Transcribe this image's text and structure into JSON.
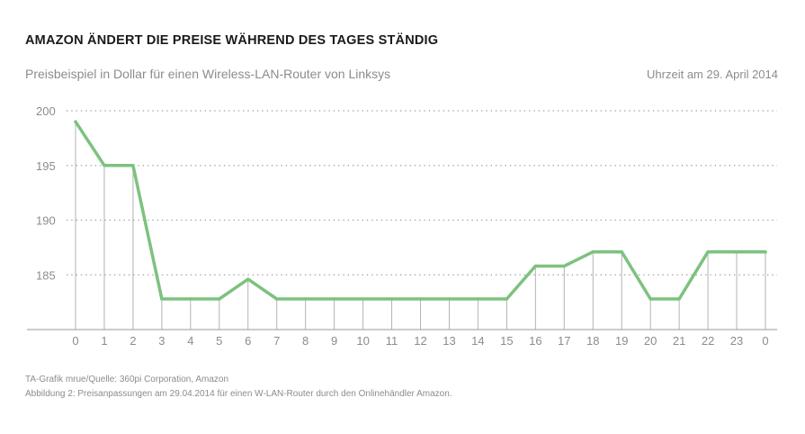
{
  "header": {
    "title": "AMAZON ÄNDERT DIE PREISE WÄHREND DES TAGES STÄNDIG",
    "subtitle": "Preisbeispiel in Dollar für einen Wireless-LAN-Router von Linksys",
    "time_note": "Uhrzeit am 29. April 2014"
  },
  "footer": {
    "source": "TA-Grafik mrue/Quelle: 360pi Corporation, Amazon",
    "caption": "Abbildung 2: Preisanpassungen am 29.04.2014 für einen W-LAN-Router durch den Onlinehändler Amazon."
  },
  "colors": {
    "line": "#7cc27f",
    "drop_line": "#b3b3b3",
    "grid": "#9a9a9a",
    "axis_text": "#8c8c8c"
  },
  "chart_data": {
    "type": "line",
    "title": "AMAZON ÄNDERT DIE PREISE WÄHREND DES TAGES STÄNDIG",
    "subtitle": "Preisbeispiel in Dollar für einen Wireless-LAN-Router von Linksys",
    "xlabel": "Uhrzeit am 29. April 2014",
    "ylabel": "",
    "categories": [
      "0",
      "1",
      "2",
      "3",
      "4",
      "5",
      "6",
      "7",
      "8",
      "9",
      "10",
      "11",
      "12",
      "13",
      "14",
      "15",
      "16",
      "17",
      "18",
      "19",
      "20",
      "21",
      "22",
      "23",
      "0"
    ],
    "values": [
      199,
      195,
      195,
      182.8,
      182.8,
      182.8,
      184.6,
      182.8,
      182.8,
      182.8,
      182.8,
      182.8,
      182.8,
      182.8,
      182.8,
      182.8,
      185.8,
      185.8,
      187.1,
      187.1,
      182.8,
      182.8,
      187.1,
      187.1,
      187.1
    ],
    "yticks": [
      "185",
      "190",
      "195",
      "200"
    ],
    "ylim": [
      180,
      200
    ],
    "grid": true,
    "legend": "none"
  }
}
